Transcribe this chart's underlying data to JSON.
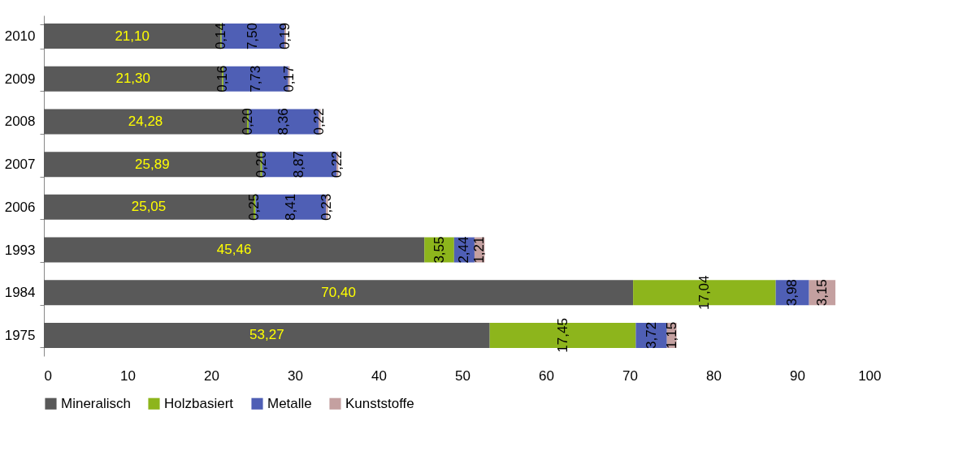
{
  "chart_data": {
    "type": "bar",
    "orientation": "horizontal",
    "stacked": true,
    "categories": [
      "2010",
      "2009",
      "2008",
      "2007",
      "2006",
      "1993",
      "1984",
      "1975"
    ],
    "series": [
      {
        "name": "Mineralisch",
        "color": "#595959",
        "values": [
          21.1,
          21.3,
          24.28,
          25.89,
          25.05,
          45.46,
          70.4,
          53.27
        ],
        "value_labels": [
          "21,10",
          "21,30",
          "24,28",
          "25,89",
          "25,05",
          "45,46",
          "70,40",
          "53,27"
        ]
      },
      {
        "name": "Holzbasiert",
        "color": "#8db51c",
        "values": [
          0.14,
          0.16,
          0.2,
          0.2,
          0.25,
          3.55,
          17.04,
          17.45
        ],
        "value_labels": [
          "0,14",
          "0,16",
          "0,20",
          "0,20",
          "0,25",
          "3,55",
          "17,04",
          "17,45"
        ]
      },
      {
        "name": "Metalle",
        "color": "#4f5fb5",
        "values": [
          7.5,
          7.73,
          8.36,
          8.87,
          8.41,
          2.44,
          3.98,
          3.72
        ],
        "value_labels": [
          "7,50",
          "7,73",
          "8,36",
          "8,87",
          "8,41",
          "2,44",
          "3,98",
          "3,72"
        ]
      },
      {
        "name": "Kunststoffe",
        "color": "#c4a0a0",
        "values": [
          0.19,
          0.17,
          0.22,
          0.22,
          0.23,
          1.21,
          3.15,
          1.15
        ],
        "value_labels": [
          "0,19",
          "0,17",
          "0,22",
          "0,22",
          "0,23",
          "1,21",
          "3,15",
          "1,15"
        ]
      }
    ],
    "xlim": [
      0,
      100
    ],
    "xticks": [
      0,
      10,
      20,
      30,
      40,
      50,
      60,
      70,
      80,
      90,
      100
    ],
    "grid": false,
    "legend": "bottom"
  }
}
